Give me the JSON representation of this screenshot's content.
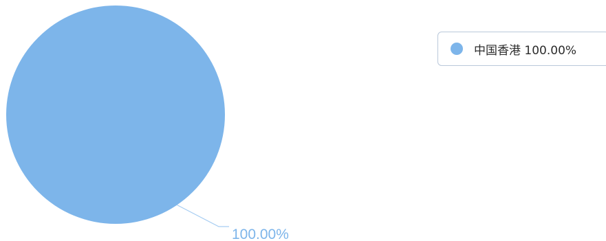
{
  "chart_data": {
    "type": "pie",
    "slices": [
      {
        "name": "中国香港",
        "value": 100.0,
        "label": "100.00%",
        "legend_text": "中国香港 100.00%",
        "color": "#7db5ea"
      }
    ],
    "label_color": "#7db5ea",
    "leader_line_color": "#a6cdf2",
    "legend_placement": "top-right",
    "legend_border_color": "#b9c8da"
  }
}
